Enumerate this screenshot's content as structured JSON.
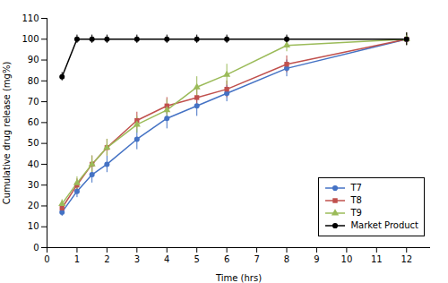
{
  "chart_data": {
    "type": "line",
    "xlabel": "Time (hrs)",
    "ylabel": "Cumulative drug release (mg%)",
    "x": [
      0.5,
      1,
      1.5,
      2,
      3,
      4,
      5,
      6,
      8,
      12
    ],
    "series": [
      {
        "name": "T7",
        "color": "#4472C4",
        "marker": "circle",
        "values": [
          17,
          27,
          35,
          40,
          52,
          62,
          68,
          74,
          86,
          100
        ],
        "errors": [
          2,
          3,
          4,
          4,
          5,
          5,
          5,
          4,
          4,
          3
        ]
      },
      {
        "name": "T8",
        "color": "#C0504D",
        "marker": "square",
        "values": [
          19,
          30,
          40,
          48,
          61,
          68,
          72,
          76,
          88,
          100
        ],
        "errors": [
          2,
          3,
          4,
          4,
          4,
          4,
          4,
          4,
          4,
          3
        ]
      },
      {
        "name": "T9",
        "color": "#9BBB59",
        "marker": "triangle",
        "values": [
          21,
          31,
          40,
          48,
          59,
          66,
          77,
          83,
          97,
          100
        ],
        "errors": [
          2,
          3,
          4,
          4,
          4,
          5,
          5,
          5,
          3,
          3
        ]
      },
      {
        "name": "Market Product",
        "color": "#000000",
        "marker": "circle",
        "values": [
          82,
          100,
          100,
          100,
          100,
          100,
          100,
          100,
          100,
          100
        ],
        "errors": [
          2,
          2,
          2,
          2,
          2,
          2,
          2,
          2,
          2,
          3
        ]
      }
    ],
    "xlim": [
      0,
      12.8
    ],
    "ylim": [
      0,
      110
    ],
    "xticks": [
      0,
      1,
      2,
      3,
      4,
      5,
      6,
      7,
      8,
      9,
      10,
      11,
      12
    ],
    "yticks": [
      0,
      10,
      20,
      30,
      40,
      50,
      60,
      70,
      80,
      90,
      100,
      110
    ],
    "grid": false,
    "legend": "lower right"
  }
}
